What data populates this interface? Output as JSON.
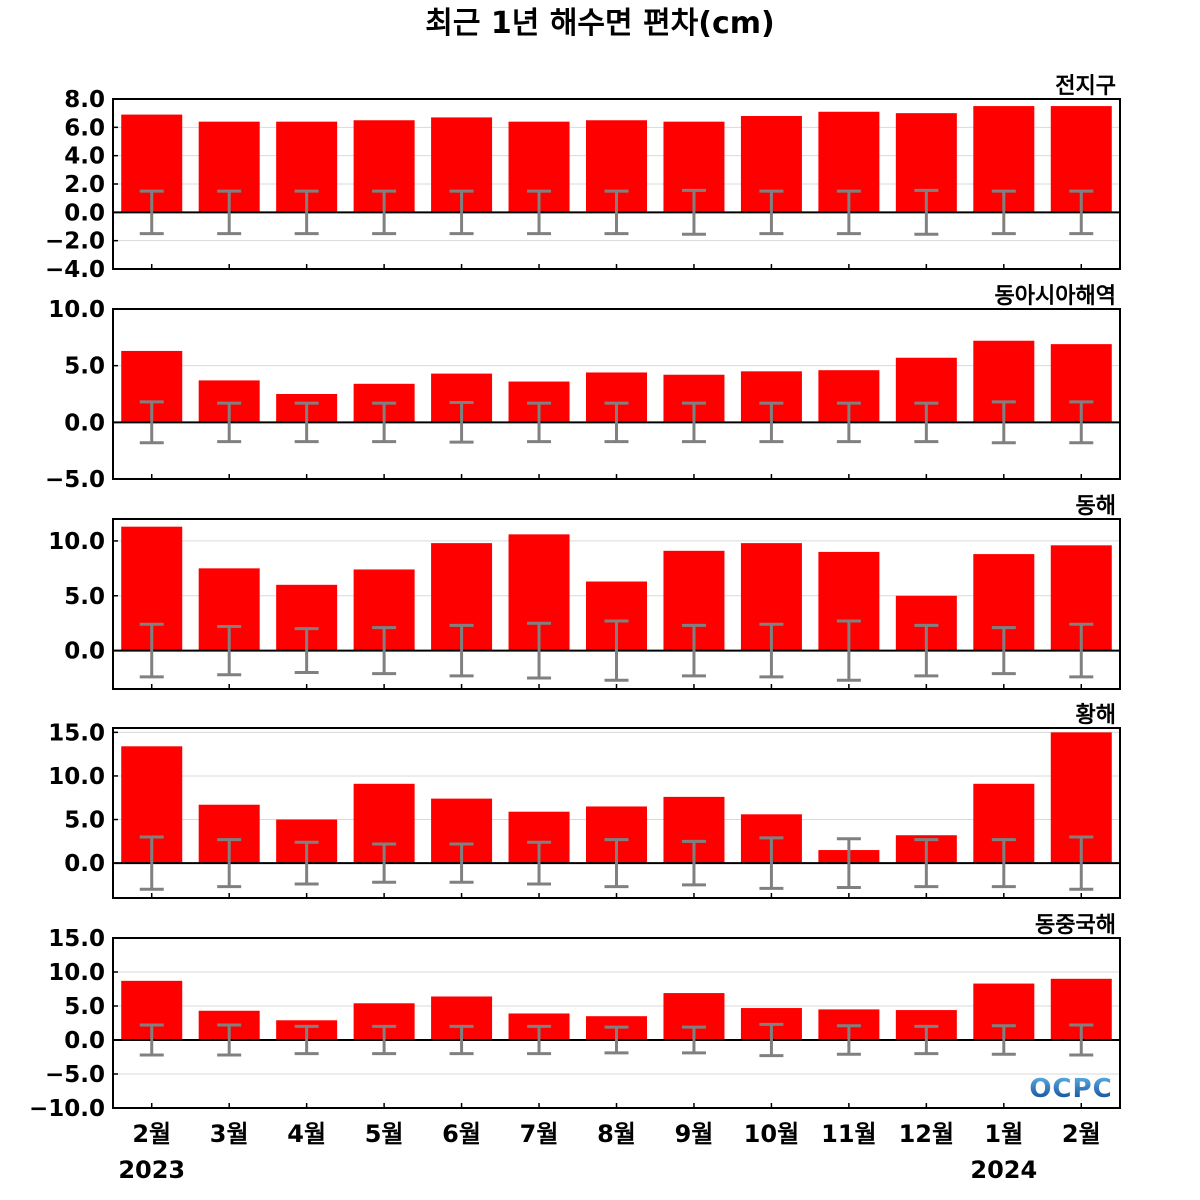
{
  "title": "최근 1년 해수면 편차(cm)",
  "logo_text": "OCPC",
  "colors": {
    "bar": "#ff0000",
    "error_bar": "#808080",
    "zero_line": "#000000",
    "grid": "#d9d9d9",
    "logo_dark": "#0a3f8c",
    "logo_light": "#5fb6ea"
  },
  "chart_data": [
    {
      "type": "bar",
      "title": "전지구",
      "categories": [
        "2월",
        "3월",
        "4월",
        "5월",
        "6월",
        "7월",
        "8월",
        "9월",
        "10월",
        "11월",
        "12월",
        "1월",
        "2월"
      ],
      "year_labels": [
        "2023",
        "",
        "",
        "",
        "",
        "",
        "",
        "",
        "",
        "",
        "",
        "2024",
        ""
      ],
      "values": [
        6.9,
        6.4,
        6.4,
        6.5,
        6.7,
        6.4,
        6.5,
        6.4,
        6.8,
        7.1,
        7.0,
        7.5,
        7.5
      ],
      "error_half_range": [
        1.5,
        1.5,
        1.5,
        1.5,
        1.5,
        1.5,
        1.5,
        1.55,
        1.5,
        1.5,
        1.55,
        1.5,
        1.5
      ],
      "ylim": [
        -4.0,
        8.0
      ],
      "yticks": [
        -4.0,
        -2.0,
        0.0,
        2.0,
        4.0,
        6.0,
        8.0
      ],
      "ytick_labels": [
        "−4.0",
        "−2.0",
        "0.0",
        "2.0",
        "4.0",
        "6.0",
        "8.0"
      ],
      "grid": true
    },
    {
      "type": "bar",
      "title": "동아시아해역",
      "categories": [
        "2월",
        "3월",
        "4월",
        "5월",
        "6월",
        "7월",
        "8월",
        "9월",
        "10월",
        "11월",
        "12월",
        "1월",
        "2월"
      ],
      "values": [
        6.3,
        3.7,
        2.5,
        3.4,
        4.3,
        3.6,
        4.4,
        4.2,
        4.5,
        4.6,
        5.7,
        7.2,
        6.9
      ],
      "error_half_range": [
        1.8,
        1.7,
        1.7,
        1.7,
        1.75,
        1.7,
        1.7,
        1.7,
        1.7,
        1.7,
        1.7,
        1.8,
        1.8
      ],
      "ylim": [
        -5.0,
        10.0
      ],
      "yticks": [
        -5.0,
        0.0,
        5.0,
        10.0
      ],
      "ytick_labels": [
        "−5.0",
        "0.0",
        "5.0",
        "10.0"
      ],
      "grid": true
    },
    {
      "type": "bar",
      "title": "동해",
      "categories": [
        "2월",
        "3월",
        "4월",
        "5월",
        "6월",
        "7월",
        "8월",
        "9월",
        "10월",
        "11월",
        "12월",
        "1월",
        "2월"
      ],
      "values": [
        11.3,
        7.5,
        6.0,
        7.4,
        9.8,
        10.6,
        6.3,
        9.1,
        9.8,
        9.0,
        5.0,
        8.8,
        9.6
      ],
      "error_half_range": [
        2.4,
        2.2,
        2.0,
        2.1,
        2.3,
        2.5,
        2.7,
        2.3,
        2.4,
        2.7,
        2.3,
        2.1,
        2.4
      ],
      "ylim": [
        -3.5,
        12.0
      ],
      "yticks": [
        0.0,
        5.0,
        10.0
      ],
      "ytick_labels": [
        "0.0",
        "5.0",
        "10.0"
      ],
      "grid": true
    },
    {
      "type": "bar",
      "title": "황해",
      "categories": [
        "2월",
        "3월",
        "4월",
        "5월",
        "6월",
        "7월",
        "8월",
        "9월",
        "10월",
        "11월",
        "12월",
        "1월",
        "2월"
      ],
      "values": [
        13.4,
        6.7,
        5.0,
        9.1,
        7.4,
        5.9,
        6.5,
        7.6,
        5.6,
        1.5,
        3.2,
        9.1,
        15.0
      ],
      "error_half_range": [
        3.0,
        2.7,
        2.4,
        2.2,
        2.2,
        2.4,
        2.7,
        2.5,
        2.9,
        2.8,
        2.7,
        2.7,
        3.0
      ],
      "ylim": [
        -4.0,
        15.5
      ],
      "yticks": [
        0.0,
        5.0,
        10.0,
        15.0
      ],
      "ytick_labels": [
        "0.0",
        "5.0",
        "10.0",
        "15.0"
      ],
      "grid": true
    },
    {
      "type": "bar",
      "title": "동중국해",
      "categories": [
        "2월",
        "3월",
        "4월",
        "5월",
        "6월",
        "7월",
        "8월",
        "9월",
        "10월",
        "11월",
        "12월",
        "1월",
        "2월"
      ],
      "values": [
        8.7,
        4.3,
        2.9,
        5.4,
        6.4,
        3.9,
        3.5,
        6.9,
        4.7,
        4.5,
        4.4,
        8.3,
        9.0
      ],
      "error_half_range": [
        2.2,
        2.2,
        2.0,
        2.0,
        2.0,
        2.0,
        1.9,
        1.9,
        2.3,
        2.1,
        2.0,
        2.1,
        2.2
      ],
      "ylim": [
        -10.0,
        15.0
      ],
      "yticks": [
        -10.0,
        -5.0,
        0.0,
        5.0,
        10.0,
        15.0
      ],
      "ytick_labels": [
        "−10.0",
        "−5.0",
        "0.0",
        "5.0",
        "10.0",
        "15.0"
      ],
      "grid": true
    }
  ]
}
